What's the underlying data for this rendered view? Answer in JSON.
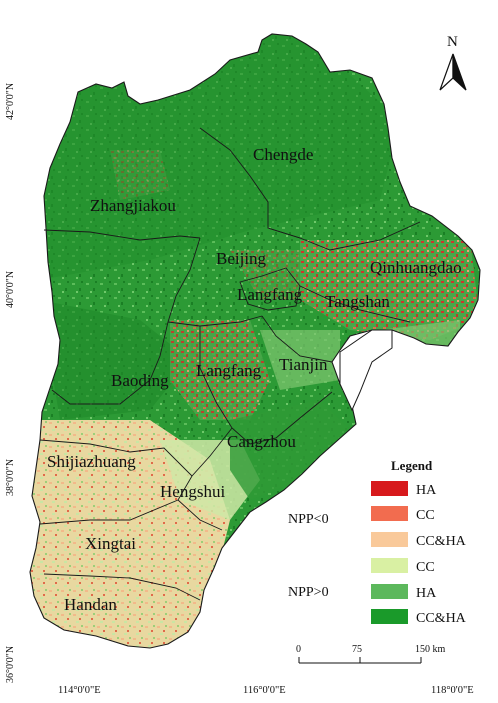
{
  "map": {
    "north_label": "N",
    "latitude_labels": [
      "42°0'0\"N",
      "40°0'0\"N",
      "38°0'0\"N",
      "36°0'0\"N"
    ],
    "longitude_labels": [
      "114°0'0\"E",
      "116°0'0\"E",
      "118°0'0\"E"
    ],
    "cities": [
      "Chengde",
      "Zhangjiakou",
      "Beijing",
      "Qinhuangdao",
      "Langfang",
      "Tangshan",
      "Langfang",
      "Tianjin",
      "Baoding",
      "Cangzhou",
      "Shijiazhuang",
      "Hengshui",
      "Xingtai",
      "Handan"
    ]
  },
  "legend": {
    "title": "Legend",
    "groups": [
      {
        "label": "NPP<0",
        "items": [
          {
            "label": "HA",
            "color": "#d7191c"
          },
          {
            "label": "CC",
            "color": "#f26c4f"
          },
          {
            "label": "CC&HA",
            "color": "#f9c99a"
          }
        ]
      },
      {
        "label": "NPP>0",
        "items": [
          {
            "label": "CC",
            "color": "#d9f0a3"
          },
          {
            "label": "HA",
            "color": "#5cb85c"
          },
          {
            "label": "CC&HA",
            "color": "#1a9a2a"
          }
        ]
      }
    ]
  },
  "scale": {
    "ticks": [
      "0",
      "75",
      "150 km"
    ]
  },
  "colors": {
    "green_dark": "#1e8f2a",
    "green_mid": "#3daa43",
    "green_light": "#c9e6a3",
    "cream": "#f3d9a8",
    "red": "#d7302a",
    "orange": "#ee8a5a"
  }
}
